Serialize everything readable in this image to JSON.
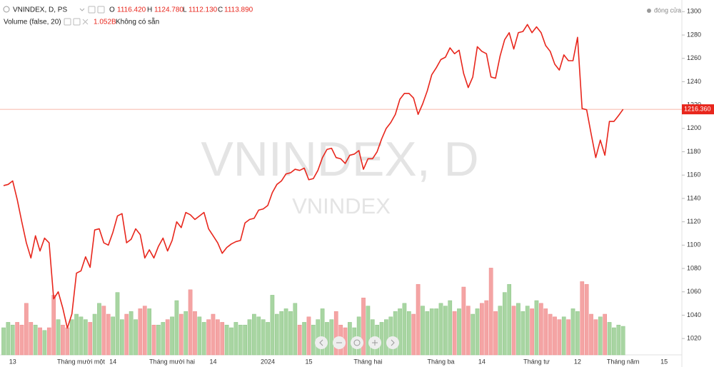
{
  "chart_data": {
    "type": "line",
    "title": "VNINDEX, D, PS",
    "watermark": "VNINDEX, D",
    "watermark_subtitle": "VNINDEX",
    "ohlc_labels": [
      "O",
      "H",
      "L",
      "C"
    ],
    "ohlc_values": [
      "1116.420",
      "1124.780",
      "1112.130",
      "1113.890"
    ],
    "categories": [
      null,
      null,
      "13",
      null,
      null,
      null,
      null,
      null,
      null,
      null,
      null,
      null,
      null,
      null,
      null,
      null,
      null,
      "Tháng mười một",
      null,
      null,
      null,
      null,
      null,
      null,
      "14",
      null,
      null,
      null,
      null,
      null,
      null,
      null,
      null,
      null,
      null,
      null,
      null,
      "Tháng mười hai",
      null,
      null,
      null,
      null,
      null,
      null,
      null,
      null,
      "14",
      null,
      null,
      null,
      null,
      null,
      null,
      null,
      null,
      null,
      null,
      null,
      "2024",
      null,
      null,
      null,
      null,
      null,
      null,
      null,
      null,
      "15",
      null,
      null,
      null,
      null,
      null,
      null,
      null,
      null,
      null,
      null,
      null,
      null,
      "Tháng hai",
      null,
      null,
      null,
      null,
      null,
      null,
      null,
      null,
      null,
      null,
      null,
      null,
      null,
      null,
      null,
      "Tháng ba",
      null,
      null,
      null,
      null,
      null,
      null,
      null,
      null,
      "14",
      null,
      null,
      null,
      null,
      null,
      null,
      null,
      null,
      null,
      null,
      null,
      "Tháng tư",
      null,
      null,
      null,
      null,
      null,
      null,
      null,
      null,
      "12",
      null,
      null,
      null,
      null,
      null,
      null,
      null,
      null,
      null,
      "Tháng năm",
      null,
      null,
      null,
      null,
      null,
      null,
      null,
      null,
      "15"
    ],
    "series": [
      {
        "name": "đóng cửa",
        "color": "#e8261c",
        "values": [
          1151,
          1152,
          1155,
          1139,
          1120,
          1102,
          1089,
          1108,
          1095,
          1106,
          1102,
          1054,
          1060,
          1046,
          1029,
          1041,
          1076,
          1078,
          1090,
          1081,
          1113,
          1114,
          1102,
          1100,
          1111,
          1125,
          1127,
          1102,
          1105,
          1114,
          1109,
          1089,
          1096,
          1089,
          1099,
          1106,
          1095,
          1104,
          1120,
          1115,
          1128,
          1126,
          1122,
          1125,
          1128,
          1114,
          1108,
          1102,
          1093,
          1098,
          1101,
          1103,
          1104,
          1119,
          1122,
          1123,
          1130,
          1131,
          1134,
          1145,
          1152,
          1155,
          1161,
          1162,
          1165,
          1164,
          1166,
          1156,
          1157,
          1164,
          1175,
          1182,
          1183,
          1175,
          1174,
          1170,
          1177,
          1178,
          1181,
          1165,
          1174,
          1174,
          1180,
          1191,
          1200,
          1205,
          1212,
          1225,
          1230,
          1230,
          1226,
          1212,
          1221,
          1232,
          1246,
          1252,
          1259,
          1261,
          1269,
          1264,
          1267,
          1247,
          1235,
          1244,
          1270,
          1266,
          1264,
          1244,
          1243,
          1262,
          1276,
          1282,
          1268,
          1282,
          1283,
          1289,
          1282,
          1287,
          1282,
          1271,
          1266,
          1255,
          1250,
          1263,
          1258,
          1258,
          1278,
          1217,
          1216,
          1195,
          1175,
          1190,
          1177,
          1206,
          1206,
          1211,
          1216.36,
          null,
          null,
          null,
          null,
          null,
          null,
          null,
          null,
          null
        ]
      }
    ],
    "last_price": {
      "value": 1216.36,
      "label": "1216.360"
    },
    "volume": {
      "name": "Volume (false, 20)",
      "last_label": "1.052B",
      "status": "Không có sẵn",
      "up_color": "#a8d5a2",
      "down_color": "#f4a4a4",
      "values": [
        1.0,
        1.2,
        1.1,
        1.2,
        1.1,
        1.9,
        1.2,
        1.1,
        1.0,
        0.9,
        1.0,
        2.2,
        1.3,
        1.1,
        1.0,
        1.3,
        1.5,
        1.4,
        1.3,
        1.2,
        1.5,
        1.9,
        1.8,
        1.5,
        1.4,
        2.3,
        1.3,
        1.5,
        1.6,
        1.3,
        1.7,
        1.8,
        1.7,
        1.1,
        1.1,
        1.2,
        1.3,
        1.4,
        2.0,
        1.5,
        1.6,
        2.4,
        1.6,
        1.4,
        1.2,
        1.3,
        1.5,
        1.3,
        1.2,
        1.1,
        1.0,
        1.2,
        1.1,
        1.1,
        1.3,
        1.5,
        1.4,
        1.3,
        1.2,
        2.2,
        1.5,
        1.6,
        1.7,
        1.6,
        1.9,
        1.1,
        1.2,
        1.4,
        1.1,
        1.3,
        1.7,
        1.2,
        1.3,
        1.6,
        1.1,
        1.0,
        1.2,
        1.0,
        1.4,
        2.1,
        1.8,
        1.3,
        1.1,
        1.2,
        1.3,
        1.4,
        1.6,
        1.7,
        1.9,
        1.6,
        1.5,
        2.6,
        1.8,
        1.6,
        1.7,
        1.7,
        1.9,
        1.8,
        2.0,
        1.6,
        1.7,
        2.5,
        1.8,
        1.5,
        1.7,
        1.9,
        2.0,
        3.2,
        1.6,
        1.8,
        2.3,
        2.6,
        1.8,
        1.9,
        1.6,
        1.8,
        1.7,
        2.0,
        1.9,
        1.7,
        1.5,
        1.4,
        1.3,
        1.4,
        1.3,
        1.7,
        1.6,
        2.7,
        2.6,
        1.5,
        1.3,
        1.4,
        1.5,
        1.2,
        1.0,
        1.1,
        1.052,
        null,
        null,
        null,
        null,
        null,
        null,
        null,
        null,
        null
      ]
    },
    "ylim": [
      1006,
      1310
    ],
    "yticks": [
      1020,
      1040,
      1060,
      1080,
      1100,
      1120,
      1140,
      1160,
      1180,
      1200,
      1220,
      1240,
      1260,
      1280,
      1300
    ],
    "legend_position": "top-right"
  }
}
